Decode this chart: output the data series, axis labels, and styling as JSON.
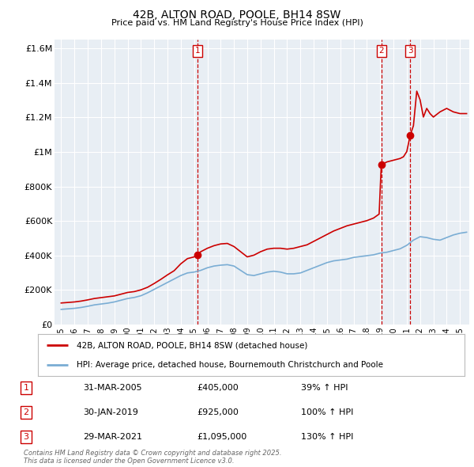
{
  "title": "42B, ALTON ROAD, POOLE, BH14 8SW",
  "subtitle": "Price paid vs. HM Land Registry's House Price Index (HPI)",
  "legend_label_red": "42B, ALTON ROAD, POOLE, BH14 8SW (detached house)",
  "legend_label_blue": "HPI: Average price, detached house, Bournemouth Christchurch and Poole",
  "footnote_line1": "Contains HM Land Registry data © Crown copyright and database right 2025.",
  "footnote_line2": "This data is licensed under the Open Government Licence v3.0.",
  "sale_markers": [
    {
      "num": "1",
      "date_str": "31-MAR-2005",
      "price_str": "£405,000",
      "pct_str": "39% ↑ HPI",
      "year": 2005.25,
      "price": 405000
    },
    {
      "num": "2",
      "date_str": "30-JAN-2019",
      "price_str": "£925,000",
      "pct_str": "100% ↑ HPI",
      "year": 2019.08,
      "price": 925000
    },
    {
      "num": "3",
      "date_str": "29-MAR-2021",
      "price_str": "£1,095,000",
      "pct_str": "130% ↑ HPI",
      "year": 2021.25,
      "price": 1095000
    }
  ],
  "ylim": [
    0,
    1650000
  ],
  "xlim_start": 1994.5,
  "xlim_end": 2025.7,
  "yticks": [
    0,
    200000,
    400000,
    600000,
    800000,
    1000000,
    1200000,
    1400000,
    1600000
  ],
  "ytick_labels": [
    "£0",
    "£200K",
    "£400K",
    "£600K",
    "£800K",
    "£1M",
    "£1.2M",
    "£1.4M",
    "£1.6M"
  ],
  "background_color": "#e8eef4",
  "grid_color": "#ffffff",
  "red_color": "#cc0000",
  "blue_color": "#7aadd4",
  "sale_line_color": "#cc0000",
  "marker_box_color": "#cc0000",
  "red_hpi_line": [
    [
      1995.0,
      125000
    ],
    [
      1995.5,
      128000
    ],
    [
      1996.0,
      131000
    ],
    [
      1996.5,
      136000
    ],
    [
      1997.0,
      143000
    ],
    [
      1997.5,
      151000
    ],
    [
      1998.0,
      156000
    ],
    [
      1998.5,
      161000
    ],
    [
      1999.0,
      166000
    ],
    [
      1999.5,
      176000
    ],
    [
      2000.0,
      186000
    ],
    [
      2000.5,
      191000
    ],
    [
      2001.0,
      201000
    ],
    [
      2001.5,
      216000
    ],
    [
      2002.0,
      238000
    ],
    [
      2002.5,
      262000
    ],
    [
      2003.0,
      288000
    ],
    [
      2003.5,
      312000
    ],
    [
      2004.0,
      352000
    ],
    [
      2004.5,
      382000
    ],
    [
      2005.0,
      392000
    ],
    [
      2005.25,
      405000
    ],
    [
      2005.5,
      422000
    ],
    [
      2006.0,
      442000
    ],
    [
      2006.5,
      457000
    ],
    [
      2007.0,
      467000
    ],
    [
      2007.5,
      470000
    ],
    [
      2008.0,
      452000
    ],
    [
      2008.5,
      422000
    ],
    [
      2009.0,
      392000
    ],
    [
      2009.5,
      402000
    ],
    [
      2010.0,
      422000
    ],
    [
      2010.5,
      437000
    ],
    [
      2011.0,
      442000
    ],
    [
      2011.5,
      442000
    ],
    [
      2012.0,
      437000
    ],
    [
      2012.5,
      442000
    ],
    [
      2013.0,
      452000
    ],
    [
      2013.5,
      462000
    ],
    [
      2014.0,
      482000
    ],
    [
      2014.5,
      502000
    ],
    [
      2015.0,
      522000
    ],
    [
      2015.5,
      542000
    ],
    [
      2016.0,
      557000
    ],
    [
      2016.5,
      572000
    ],
    [
      2017.0,
      582000
    ],
    [
      2017.5,
      592000
    ],
    [
      2018.0,
      602000
    ],
    [
      2018.5,
      617000
    ],
    [
      2018.92,
      640000
    ],
    [
      2019.08,
      925000
    ],
    [
      2019.5,
      942000
    ],
    [
      2020.0,
      952000
    ],
    [
      2020.5,
      962000
    ],
    [
      2020.75,
      972000
    ],
    [
      2021.0,
      1002000
    ],
    [
      2021.25,
      1095000
    ],
    [
      2021.5,
      1152000
    ],
    [
      2021.75,
      1352000
    ],
    [
      2022.0,
      1302000
    ],
    [
      2022.25,
      1202000
    ],
    [
      2022.5,
      1252000
    ],
    [
      2022.75,
      1222000
    ],
    [
      2023.0,
      1202000
    ],
    [
      2023.5,
      1232000
    ],
    [
      2024.0,
      1252000
    ],
    [
      2024.5,
      1232000
    ],
    [
      2025.0,
      1222000
    ],
    [
      2025.5,
      1222000
    ]
  ],
  "blue_hpi_line": [
    [
      1995.0,
      88000
    ],
    [
      1995.5,
      91000
    ],
    [
      1996.0,
      94000
    ],
    [
      1996.5,
      99000
    ],
    [
      1997.0,
      106000
    ],
    [
      1997.5,
      114000
    ],
    [
      1998.0,
      119000
    ],
    [
      1998.5,
      124000
    ],
    [
      1999.0,
      131000
    ],
    [
      1999.5,
      141000
    ],
    [
      2000.0,
      151000
    ],
    [
      2000.5,
      157000
    ],
    [
      2001.0,
      167000
    ],
    [
      2001.5,
      184000
    ],
    [
      2002.0,
      204000
    ],
    [
      2002.5,
      224000
    ],
    [
      2003.0,
      244000
    ],
    [
      2003.5,
      264000
    ],
    [
      2004.0,
      284000
    ],
    [
      2004.5,
      299000
    ],
    [
      2005.0,
      304000
    ],
    [
      2005.5,
      314000
    ],
    [
      2006.0,
      329000
    ],
    [
      2006.5,
      339000
    ],
    [
      2007.0,
      344000
    ],
    [
      2007.5,
      347000
    ],
    [
      2008.0,
      339000
    ],
    [
      2008.5,
      314000
    ],
    [
      2009.0,
      289000
    ],
    [
      2009.5,
      284000
    ],
    [
      2010.0,
      294000
    ],
    [
      2010.5,
      304000
    ],
    [
      2011.0,
      309000
    ],
    [
      2011.5,
      304000
    ],
    [
      2012.0,
      294000
    ],
    [
      2012.5,
      294000
    ],
    [
      2013.0,
      299000
    ],
    [
      2013.5,
      314000
    ],
    [
      2014.0,
      329000
    ],
    [
      2014.5,
      344000
    ],
    [
      2015.0,
      359000
    ],
    [
      2015.5,
      369000
    ],
    [
      2016.0,
      374000
    ],
    [
      2016.5,
      379000
    ],
    [
      2017.0,
      389000
    ],
    [
      2017.5,
      394000
    ],
    [
      2018.0,
      399000
    ],
    [
      2018.5,
      404000
    ],
    [
      2019.0,
      414000
    ],
    [
      2019.5,
      419000
    ],
    [
      2020.0,
      429000
    ],
    [
      2020.5,
      439000
    ],
    [
      2021.0,
      459000
    ],
    [
      2021.5,
      489000
    ],
    [
      2022.0,
      509000
    ],
    [
      2022.5,
      504000
    ],
    [
      2023.0,
      494000
    ],
    [
      2023.5,
      489000
    ],
    [
      2024.0,
      504000
    ],
    [
      2024.5,
      519000
    ],
    [
      2025.0,
      529000
    ],
    [
      2025.5,
      535000
    ]
  ],
  "xticks": [
    1995,
    1996,
    1997,
    1998,
    1999,
    2000,
    2001,
    2002,
    2003,
    2004,
    2005,
    2006,
    2007,
    2008,
    2009,
    2010,
    2011,
    2012,
    2013,
    2014,
    2015,
    2016,
    2017,
    2018,
    2019,
    2020,
    2021,
    2022,
    2023,
    2024,
    2025
  ]
}
